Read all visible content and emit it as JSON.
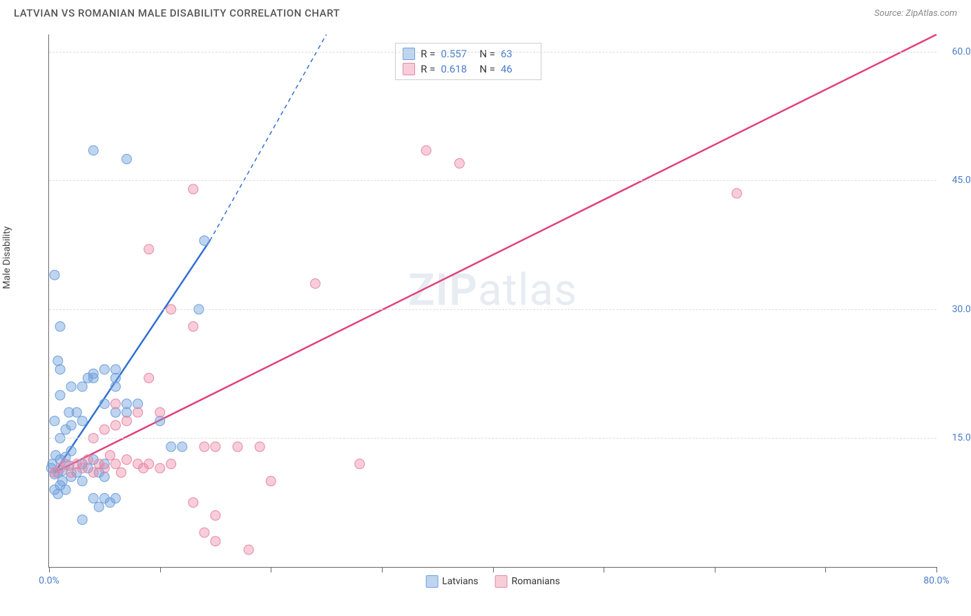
{
  "header": {
    "title": "LATVIAN VS ROMANIAN MALE DISABILITY CORRELATION CHART",
    "source": "Source: ZipAtlas.com"
  },
  "axes": {
    "y_label": "Male Disability",
    "x_min": 0,
    "x_max": 80,
    "y_min": 0,
    "y_max": 62,
    "x_ticks": [
      0,
      10,
      20,
      30,
      40,
      50,
      60,
      70,
      80
    ],
    "x_tick_labels": {
      "0": "0.0%",
      "80": "80.0%"
    },
    "y_gridlines": [
      15,
      30,
      45,
      60
    ],
    "y_tick_labels": {
      "15": "15.0%",
      "30": "30.0%",
      "45": "45.0%",
      "60": "60.0%"
    }
  },
  "series": {
    "latvians": {
      "label": "Latvians",
      "color_fill": "rgba(110, 160, 220, 0.45)",
      "color_stroke": "#6ea0dc",
      "trend_color": "#2f6fd0",
      "trend_solid_end_x": 14.5,
      "trend_solid_end_y": 38,
      "trend_dash_end_x": 25,
      "trend_dash_end_y": 62,
      "r": "0.557",
      "n": "63",
      "points": [
        [
          0.2,
          11.5
        ],
        [
          0.5,
          10.8
        ],
        [
          0.3,
          12
        ],
        [
          0.8,
          11
        ],
        [
          1,
          12.5
        ],
        [
          1.2,
          11.2
        ],
        [
          0.6,
          13
        ],
        [
          1.5,
          12.8
        ],
        [
          1.8,
          11.8
        ],
        [
          2,
          13.5
        ],
        [
          2,
          10.5
        ],
        [
          0.5,
          9
        ],
        [
          0.8,
          8.5
        ],
        [
          1,
          9.5
        ],
        [
          1.2,
          10
        ],
        [
          1.5,
          9
        ],
        [
          2.5,
          11
        ],
        [
          3,
          12
        ],
        [
          3,
          10
        ],
        [
          3.5,
          11.5
        ],
        [
          4,
          12.5
        ],
        [
          4.5,
          11
        ],
        [
          5,
          12
        ],
        [
          5,
          10.5
        ],
        [
          1,
          15
        ],
        [
          1.5,
          16
        ],
        [
          2,
          16.5
        ],
        [
          1.8,
          18
        ],
        [
          2.5,
          18
        ],
        [
          3,
          17
        ],
        [
          0.5,
          17
        ],
        [
          1,
          20
        ],
        [
          2,
          21
        ],
        [
          3,
          21
        ],
        [
          3.5,
          22
        ],
        [
          4,
          22
        ],
        [
          5,
          19
        ],
        [
          6,
          21
        ],
        [
          6,
          18
        ],
        [
          7,
          19
        ],
        [
          0.8,
          24
        ],
        [
          1,
          23
        ],
        [
          4,
          22.5
        ],
        [
          5,
          23
        ],
        [
          6,
          22
        ],
        [
          1,
          28
        ],
        [
          6,
          23
        ],
        [
          7,
          18
        ],
        [
          8,
          19
        ],
        [
          4,
          8
        ],
        [
          4.5,
          7
        ],
        [
          5,
          8
        ],
        [
          5.5,
          7.5
        ],
        [
          6,
          8
        ],
        [
          3,
          5.5
        ],
        [
          0.5,
          34
        ],
        [
          4,
          48.5
        ],
        [
          7,
          47.5
        ],
        [
          14,
          38
        ],
        [
          13.5,
          30
        ],
        [
          10,
          17
        ],
        [
          11,
          14
        ],
        [
          12,
          14
        ]
      ]
    },
    "romanians": {
      "label": "Romanians",
      "color_fill": "rgba(235, 130, 160, 0.4)",
      "color_stroke": "#e985a6",
      "trend_color": "#e23f7a",
      "trend_end_x": 80,
      "trend_end_y": 62,
      "r": "0.618",
      "n": "46",
      "points": [
        [
          0.5,
          11
        ],
        [
          1,
          11.5
        ],
        [
          1.5,
          12
        ],
        [
          2,
          11
        ],
        [
          2.5,
          12
        ],
        [
          3,
          11.5
        ],
        [
          3.5,
          12.5
        ],
        [
          4,
          11
        ],
        [
          4.5,
          12
        ],
        [
          5,
          11.5
        ],
        [
          5.5,
          13
        ],
        [
          6,
          12
        ],
        [
          6.5,
          11
        ],
        [
          7,
          12.5
        ],
        [
          8,
          12
        ],
        [
          8.5,
          11.5
        ],
        [
          9,
          12
        ],
        [
          10,
          11.5
        ],
        [
          11,
          12
        ],
        [
          7,
          17
        ],
        [
          8,
          18
        ],
        [
          9,
          22
        ],
        [
          10,
          18
        ],
        [
          14,
          14
        ],
        [
          15,
          14
        ],
        [
          17,
          14
        ],
        [
          19,
          14
        ],
        [
          20,
          10
        ],
        [
          28,
          12
        ],
        [
          13,
          7.5
        ],
        [
          15,
          6
        ],
        [
          14,
          4
        ],
        [
          15,
          3
        ],
        [
          18,
          2
        ],
        [
          9,
          37
        ],
        [
          11,
          30
        ],
        [
          13,
          28
        ],
        [
          13,
          44
        ],
        [
          24,
          33
        ],
        [
          34,
          48.5
        ],
        [
          37,
          47
        ],
        [
          62,
          43.5
        ],
        [
          4,
          15
        ],
        [
          5,
          16
        ],
        [
          6,
          16.5
        ],
        [
          6,
          19
        ]
      ]
    }
  },
  "watermark": {
    "zip": "ZIP",
    "atlas": "atlas"
  },
  "marker_radius": 7,
  "background_color": "#ffffff",
  "grid_color": "#dddddd",
  "legend_labels": {
    "r": "R =",
    "n": "N ="
  }
}
